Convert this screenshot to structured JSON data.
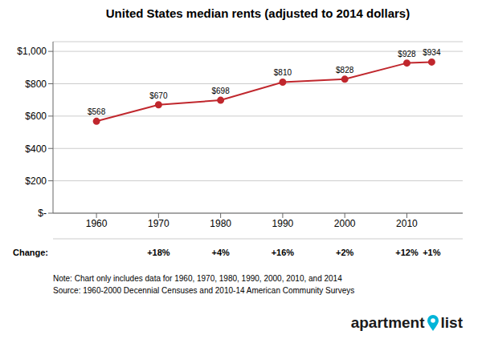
{
  "chart_data": {
    "type": "line",
    "title": "United States median rents (adjusted to 2014 dollars)",
    "x": [
      1960,
      1970,
      1980,
      1990,
      2000,
      2010,
      2014
    ],
    "values": [
      568,
      670,
      698,
      810,
      828,
      928,
      934
    ],
    "value_labels": [
      "$568",
      "$670",
      "$698",
      "$810",
      "$828",
      "$928",
      "$934"
    ],
    "data_labels": true,
    "color": "#c0272d",
    "marker": "circle",
    "xlim": [
      1953,
      2019
    ],
    "xticks": [
      1960,
      1970,
      1980,
      1990,
      2000,
      2010
    ],
    "ylim": [
      0,
      1060
    ],
    "yticks": [
      {
        "value": 0,
        "label": "$-"
      },
      {
        "value": 200,
        "label": "$200"
      },
      {
        "value": 400,
        "label": "$400"
      },
      {
        "value": 600,
        "label": "$600"
      },
      {
        "value": 800,
        "label": "$800"
      },
      {
        "value": 1000,
        "label": "$1,000"
      }
    ],
    "grid": "y",
    "change_label": "Change:",
    "change_x": [
      1970,
      1980,
      1990,
      2000,
      2010,
      2014
    ],
    "changes": [
      "+18%",
      "+4%",
      "+16%",
      "+2%",
      "+12%",
      "+1%"
    ],
    "notes": [
      "Note: Chart only includes data for 1960, 1970, 1980, 1990, 2000, 2010, and 2014",
      "Source: 1960-2000 Decennial Censuses and 2010-14 American Community Surveys"
    ],
    "logo": {
      "texts": [
        "apartment",
        "list"
      ],
      "color": "#1a1a1a",
      "pin_color": "#00b4d8"
    }
  }
}
